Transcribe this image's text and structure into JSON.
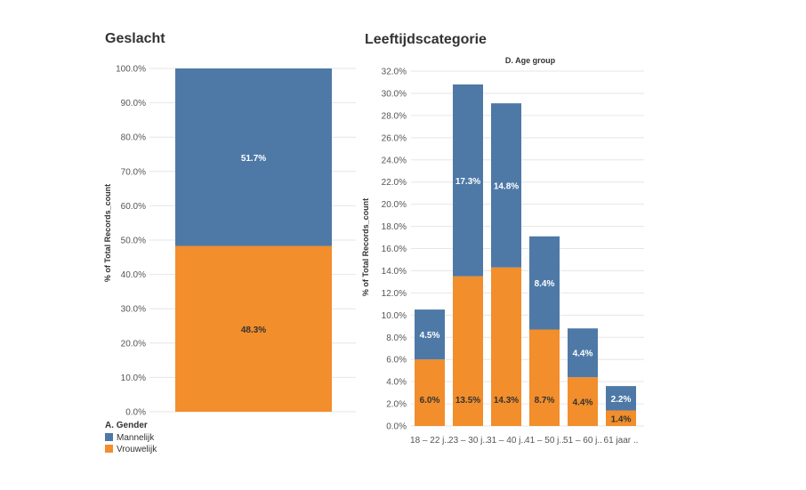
{
  "colors": {
    "male": "#4e79a7",
    "female": "#f28e2b"
  },
  "legend": {
    "title": "A. Gender",
    "items": [
      {
        "label": "Mannelijk",
        "color": "#4e79a7"
      },
      {
        "label": "Vrouwelijk",
        "color": "#f28e2b"
      }
    ]
  },
  "chart_data": [
    {
      "type": "bar",
      "stacked": true,
      "title": "Geslacht",
      "xlabel": "",
      "ylabel": "% of Total Records_count",
      "ylim": [
        0,
        100
      ],
      "yticks": [
        "0.0%",
        "10.0%",
        "20.0%",
        "30.0%",
        "40.0%",
        "50.0%",
        "60.0%",
        "70.0%",
        "80.0%",
        "90.0%",
        "100.0%"
      ],
      "categories": [
        ""
      ],
      "series": [
        {
          "name": "Vrouwelijk",
          "values": [
            48.3
          ],
          "labels": [
            "48.3%"
          ]
        },
        {
          "name": "Mannelijk",
          "values": [
            51.7
          ],
          "labels": [
            "51.7%"
          ]
        }
      ]
    },
    {
      "type": "bar",
      "stacked": true,
      "title": "Leeftijdscategorie",
      "subtitle": "D. Age group",
      "xlabel": "",
      "ylabel": "% of Total Records_count",
      "ylim": [
        0,
        32
      ],
      "yticks": [
        "0.0%",
        "2.0%",
        "4.0%",
        "6.0%",
        "8.0%",
        "10.0%",
        "12.0%",
        "14.0%",
        "16.0%",
        "18.0%",
        "20.0%",
        "22.0%",
        "24.0%",
        "26.0%",
        "28.0%",
        "30.0%",
        "32.0%"
      ],
      "categories": [
        "18 – 22 j..",
        "23 – 30 j..",
        "31 – 40 j..",
        "41 – 50 j..",
        "51 – 60 j..",
        "61 jaar .."
      ],
      "series": [
        {
          "name": "Vrouwelijk",
          "values": [
            6.0,
            13.5,
            14.3,
            8.7,
            4.4,
            1.4
          ],
          "labels": [
            "6.0%",
            "13.5%",
            "14.3%",
            "8.7%",
            "4.4%",
            "1.4%"
          ]
        },
        {
          "name": "Mannelijk",
          "values": [
            4.5,
            17.3,
            14.8,
            8.4,
            4.4,
            2.2
          ],
          "labels": [
            "4.5%",
            "17.3%",
            "14.8%",
            "8.4%",
            "4.4%",
            "2.2%"
          ]
        }
      ]
    }
  ]
}
